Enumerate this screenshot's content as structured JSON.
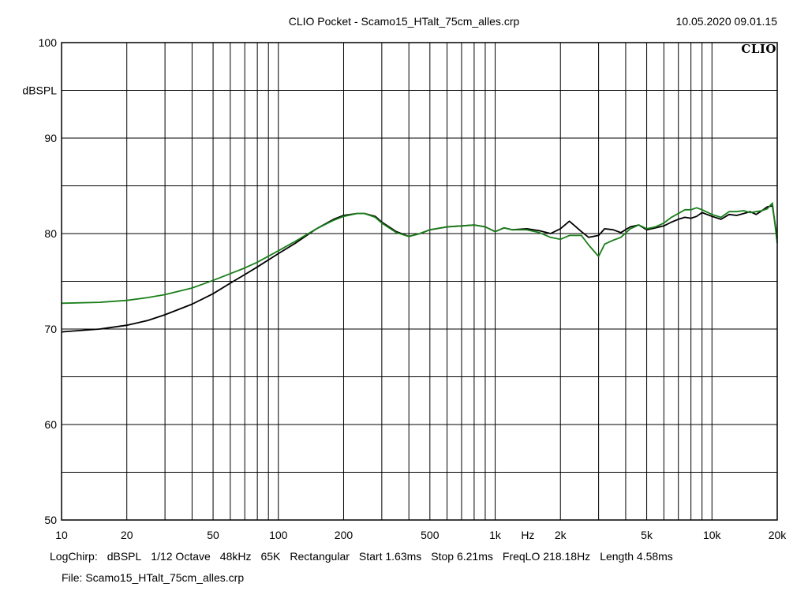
{
  "header": {
    "title": "CLIO Pocket - Scamo15_HTalt_75cm_alles.crp",
    "timestamp": "10.05.2020 09.01.15",
    "brand": "CLIO"
  },
  "footer": {
    "info": [
      "LogChirp:",
      "dBSPL",
      "1/12 Octave",
      "48kHz",
      "65K",
      "Rectangular",
      "Start 1.63ms",
      "Stop 6.21ms",
      "FreqLO 218.18Hz",
      "Length 4.58ms"
    ],
    "file": "File: Scamo15_HTalt_75cm_alles.crp"
  },
  "colors": {
    "background": "#ffffff",
    "grid": "#000000",
    "series_black": "#000000",
    "series_green": "#1a7f1a"
  },
  "chart_data": {
    "type": "line",
    "title": "",
    "xlabel": "Hz",
    "ylabel": "dBSPL",
    "x_scale": "log",
    "xlim": [
      10,
      20000
    ],
    "ylim": [
      50,
      100
    ],
    "grid": true,
    "x_ticks": [
      {
        "value": 10,
        "label": "10"
      },
      {
        "value": 20,
        "label": "20"
      },
      {
        "value": 50,
        "label": "50"
      },
      {
        "value": 100,
        "label": "100"
      },
      {
        "value": 200,
        "label": "200"
      },
      {
        "value": 500,
        "label": "500"
      },
      {
        "value": 1000,
        "label": "1k"
      },
      {
        "value": 2000,
        "label": "2k"
      },
      {
        "value": 5000,
        "label": "5k"
      },
      {
        "value": 10000,
        "label": "10k"
      },
      {
        "value": 20000,
        "label": "20k"
      }
    ],
    "y_ticks": [
      {
        "value": 50,
        "label": "50"
      },
      {
        "value": 60,
        "label": "60"
      },
      {
        "value": 70,
        "label": "70"
      },
      {
        "value": 80,
        "label": "80"
      },
      {
        "value": 90,
        "label": "90"
      },
      {
        "value": 100,
        "label": "100"
      }
    ],
    "series": [
      {
        "color": "#000000",
        "x": [
          10,
          15,
          20,
          25,
          30,
          40,
          50,
          60,
          70,
          80,
          100,
          120,
          150,
          180,
          200,
          230,
          250,
          280,
          300,
          350,
          400,
          450,
          500,
          600,
          700,
          800,
          900,
          1000,
          1100,
          1200,
          1400,
          1600,
          1800,
          2000,
          2200,
          2500,
          2700,
          3000,
          3200,
          3500,
          3800,
          4200,
          4600,
          5000,
          5500,
          6000,
          6500,
          7000,
          7500,
          8000,
          8500,
          9000,
          10000,
          11000,
          12000,
          13000,
          14000,
          15000,
          16000,
          17000,
          18000,
          19000,
          20000
        ],
        "y": [
          69.7,
          70.0,
          70.4,
          70.9,
          71.5,
          72.6,
          73.7,
          74.8,
          75.7,
          76.5,
          77.9,
          79.0,
          80.5,
          81.5,
          81.9,
          82.1,
          82.1,
          81.8,
          81.2,
          80.2,
          79.7,
          80.0,
          80.4,
          80.7,
          80.8,
          80.9,
          80.7,
          80.2,
          80.6,
          80.4,
          80.5,
          80.3,
          80.0,
          80.5,
          81.3,
          80.2,
          79.6,
          79.8,
          80.5,
          80.4,
          80.1,
          80.7,
          80.9,
          80.4,
          80.6,
          80.8,
          81.2,
          81.5,
          81.7,
          81.6,
          81.8,
          82.2,
          81.8,
          81.5,
          82.0,
          81.9,
          82.1,
          82.3,
          82.0,
          82.4,
          82.8,
          82.9,
          79.5
        ]
      },
      {
        "color": "#1a7f1a",
        "x": [
          10,
          15,
          20,
          25,
          30,
          40,
          50,
          60,
          70,
          80,
          100,
          120,
          150,
          180,
          200,
          230,
          250,
          280,
          300,
          350,
          400,
          450,
          500,
          600,
          700,
          800,
          900,
          1000,
          1100,
          1200,
          1400,
          1600,
          1800,
          2000,
          2200,
          2500,
          2700,
          3000,
          3200,
          3500,
          3800,
          4200,
          4600,
          5000,
          5500,
          6000,
          6500,
          7000,
          7500,
          8000,
          8500,
          9000,
          10000,
          11000,
          12000,
          13000,
          14000,
          15000,
          16000,
          17000,
          18000,
          19000,
          20000
        ],
        "y": [
          72.7,
          72.8,
          73.0,
          73.3,
          73.6,
          74.3,
          75.1,
          75.8,
          76.4,
          77.0,
          78.2,
          79.2,
          80.5,
          81.4,
          81.8,
          82.1,
          82.1,
          81.7,
          81.1,
          80.1,
          79.7,
          80.0,
          80.4,
          80.7,
          80.8,
          80.9,
          80.7,
          80.2,
          80.6,
          80.4,
          80.4,
          80.1,
          79.6,
          79.4,
          79.8,
          79.8,
          78.8,
          77.6,
          78.9,
          79.3,
          79.6,
          80.5,
          80.9,
          80.5,
          80.7,
          81.1,
          81.7,
          82.1,
          82.5,
          82.5,
          82.7,
          82.5,
          82.0,
          81.7,
          82.3,
          82.3,
          82.4,
          82.2,
          82.3,
          82.4,
          82.6,
          83.2,
          79.0
        ]
      }
    ]
  }
}
